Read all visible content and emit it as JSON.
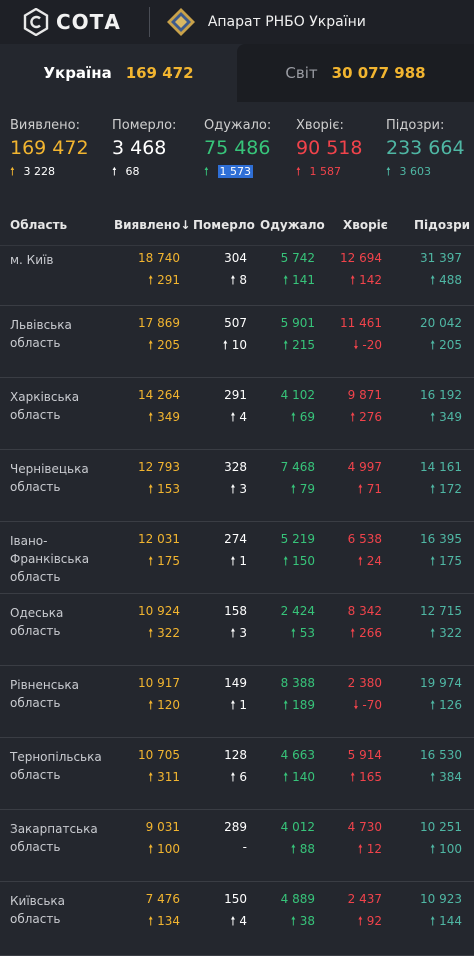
{
  "header": {
    "logo_text": "СОТА",
    "org_title": "Апарат РНБО України"
  },
  "tabs": [
    {
      "label": "Україна",
      "value": "169 472",
      "active": true
    },
    {
      "label": "Світ",
      "value": "30 077 988",
      "active": false
    }
  ],
  "summary": [
    {
      "label": "Виявлено:",
      "value": "169 472",
      "delta": "3 228",
      "dir": "up",
      "color": "yellow"
    },
    {
      "label": "Померло:",
      "value": "3 468",
      "delta": "68",
      "dir": "up",
      "color": "white"
    },
    {
      "label": "Одужало:",
      "value": "75 486",
      "delta": "1 573",
      "dir": "up",
      "color": "green",
      "highlight": true
    },
    {
      "label": "Хворіє:",
      "value": "90 518",
      "delta": "1 587",
      "dir": "up",
      "color": "red"
    },
    {
      "label": "Підозри:",
      "value": "233 664",
      "delta": "3 603",
      "dir": "up",
      "color": "teal"
    }
  ],
  "table": {
    "columns": [
      "Область",
      "Виявлено",
      "Померло",
      "Одужало",
      "Хворіє",
      "Підозри"
    ],
    "sort_indicator": "↓",
    "rows": [
      {
        "region": "м. Київ",
        "detected": "18 740",
        "detected_d": "291",
        "dead": "304",
        "dead_d": "8",
        "recovered": "5 742",
        "recovered_d": "141",
        "sick": "12 694",
        "sick_d": "142",
        "sick_dir": "up",
        "susp": "31 397",
        "susp_d": "488"
      },
      {
        "region": "Львівська область",
        "detected": "17 869",
        "detected_d": "205",
        "dead": "507",
        "dead_d": "10",
        "recovered": "5 901",
        "recovered_d": "215",
        "sick": "11 461",
        "sick_d": "-20",
        "sick_dir": "down",
        "susp": "20 042",
        "susp_d": "205"
      },
      {
        "region": "Харківська область",
        "detected": "14 264",
        "detected_d": "349",
        "dead": "291",
        "dead_d": "4",
        "recovered": "4 102",
        "recovered_d": "69",
        "sick": "9 871",
        "sick_d": "276",
        "sick_dir": "up",
        "susp": "16 192",
        "susp_d": "349"
      },
      {
        "region": "Чернівецька область",
        "detected": "12 793",
        "detected_d": "153",
        "dead": "328",
        "dead_d": "3",
        "recovered": "7 468",
        "recovered_d": "79",
        "sick": "4 997",
        "sick_d": "71",
        "sick_dir": "up",
        "susp": "14 161",
        "susp_d": "172"
      },
      {
        "region": "Івано-Франківська область",
        "detected": "12 031",
        "detected_d": "175",
        "dead": "274",
        "dead_d": "1",
        "recovered": "5 219",
        "recovered_d": "150",
        "sick": "6 538",
        "sick_d": "24",
        "sick_dir": "up",
        "susp": "16 395",
        "susp_d": "175"
      },
      {
        "region": "Одеська область",
        "detected": "10 924",
        "detected_d": "322",
        "dead": "158",
        "dead_d": "3",
        "recovered": "2 424",
        "recovered_d": "53",
        "sick": "8 342",
        "sick_d": "266",
        "sick_dir": "up",
        "susp": "12 715",
        "susp_d": "322"
      },
      {
        "region": "Рівненська область",
        "detected": "10 917",
        "detected_d": "120",
        "dead": "149",
        "dead_d": "1",
        "recovered": "8 388",
        "recovered_d": "189",
        "sick": "2 380",
        "sick_d": "-70",
        "sick_dir": "down",
        "susp": "19 974",
        "susp_d": "126"
      },
      {
        "region": "Тернопільська область",
        "detected": "10 705",
        "detected_d": "311",
        "dead": "128",
        "dead_d": "6",
        "recovered": "4 663",
        "recovered_d": "140",
        "sick": "5 914",
        "sick_d": "165",
        "sick_dir": "up",
        "susp": "16 530",
        "susp_d": "384"
      },
      {
        "region": "Закарпатська область",
        "detected": "9 031",
        "detected_d": "100",
        "dead": "289",
        "dead_d": "-",
        "recovered": "4 012",
        "recovered_d": "88",
        "sick": "4 730",
        "sick_d": "12",
        "sick_dir": "up",
        "susp": "10 251",
        "susp_d": "100"
      },
      {
        "region": "Київська область",
        "detected": "7 476",
        "detected_d": "134",
        "dead": "150",
        "dead_d": "4",
        "recovered": "4 889",
        "recovered_d": "38",
        "sick": "2 437",
        "sick_d": "92",
        "sick_dir": "up",
        "susp": "10 923",
        "susp_d": "144"
      }
    ]
  }
}
